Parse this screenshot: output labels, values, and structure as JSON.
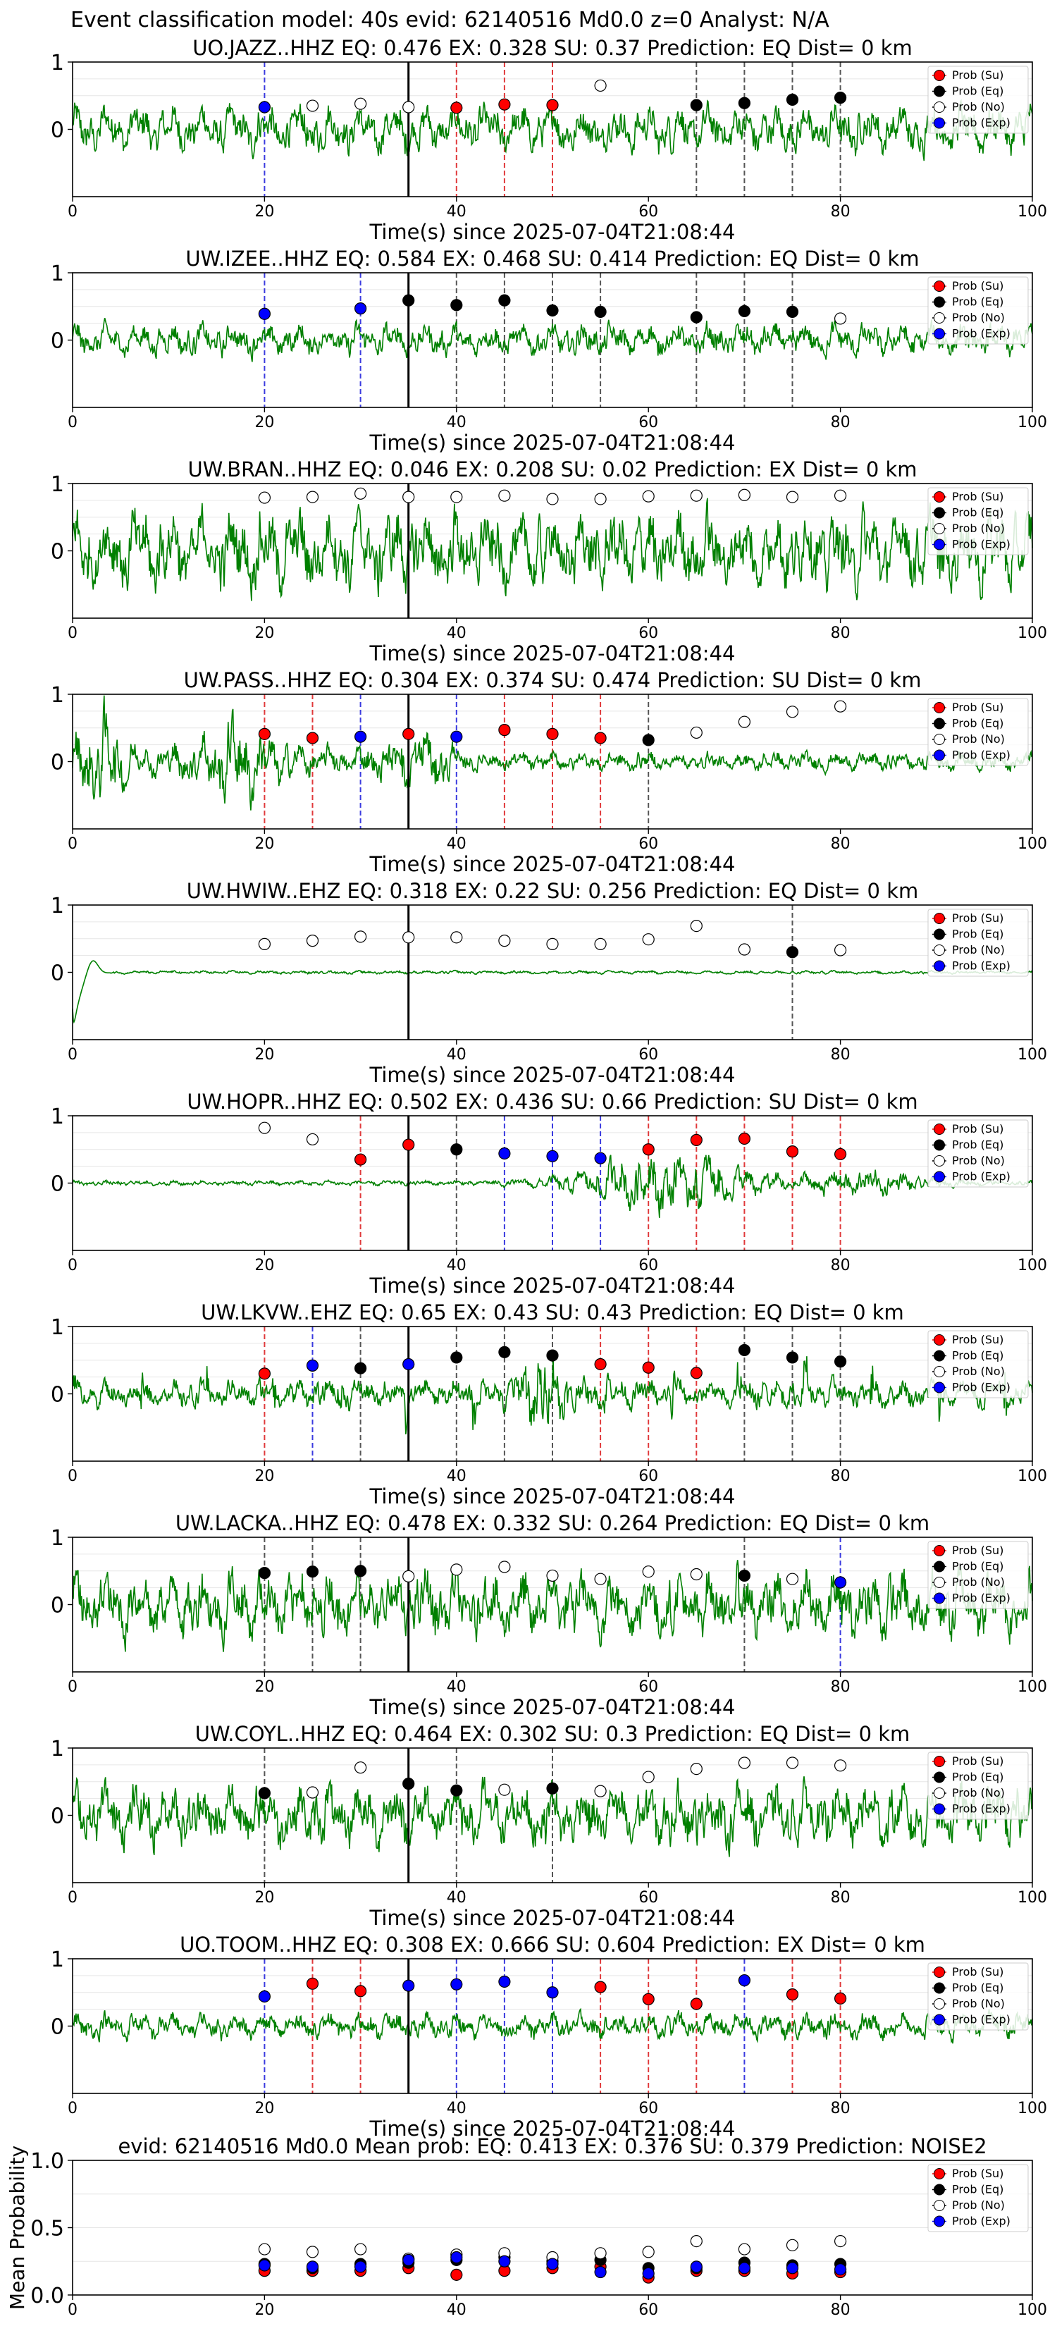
{
  "suptitle": "Event classification model: 40s evid: 62140516 Md0.0 z=0 Analyst: N/A",
  "legend_labels": [
    "Prob (Su)",
    "Prob (Eq)",
    "Prob (No)",
    "Prob (Exp)"
  ],
  "colors": {
    "waveform": "#008000",
    "su": "#ff0000",
    "eq": "#000000",
    "no": "#ffffff",
    "exp": "#0000ff",
    "su_line": "#e0393b",
    "eq_line": "#555555",
    "exp_line": "#3a3adf",
    "pick_line": "#000000"
  },
  "chart_data": [
    {
      "type": "line+scatter",
      "station": "UO.JAZZ..HHZ",
      "title": "UO.JAZZ..HHZ   EQ: 0.476  EX: 0.328  SU: 0.37   Prediction: EQ    Dist= 0 km",
      "xlabel": "Time(s) since 2025-07-04T21:08:44",
      "xlim": [
        0,
        100
      ],
      "ylim": [
        -1,
        1
      ],
      "xticks": [
        0,
        20,
        40,
        60,
        80,
        100
      ],
      "yticks": [
        0,
        1
      ],
      "pick_time": 35,
      "waveform": {
        "style": "continuous",
        "amplitude": 0.45
      },
      "points": [
        {
          "x": 20,
          "y": 0.33,
          "cls": "exp"
        },
        {
          "x": 25,
          "y": 0.35,
          "cls": "no"
        },
        {
          "x": 30,
          "y": 0.38,
          "cls": "no"
        },
        {
          "x": 35,
          "y": 0.33,
          "cls": "no"
        },
        {
          "x": 40,
          "y": 0.32,
          "cls": "su"
        },
        {
          "x": 45,
          "y": 0.37,
          "cls": "su"
        },
        {
          "x": 50,
          "y": 0.36,
          "cls": "su"
        },
        {
          "x": 55,
          "y": 0.65,
          "cls": "no"
        },
        {
          "x": 65,
          "y": 0.36,
          "cls": "eq"
        },
        {
          "x": 70,
          "y": 0.39,
          "cls": "eq"
        },
        {
          "x": 75,
          "y": 0.44,
          "cls": "eq"
        },
        {
          "x": 80,
          "y": 0.47,
          "cls": "eq"
        }
      ]
    },
    {
      "type": "line+scatter",
      "station": "UW.IZEE..HHZ",
      "title": "UW.IZEE..HHZ   EQ: 0.584  EX: 0.468  SU: 0.414   Prediction: EQ    Dist= 0 km",
      "xlabel": "Time(s) since 2025-07-04T21:08:44",
      "xlim": [
        0,
        100
      ],
      "ylim": [
        -1,
        1
      ],
      "xticks": [
        0,
        20,
        40,
        60,
        80,
        100
      ],
      "yticks": [
        0,
        1
      ],
      "pick_time": 35,
      "waveform": {
        "style": "continuous",
        "amplitude": 0.3
      },
      "points": [
        {
          "x": 20,
          "y": 0.39,
          "cls": "exp"
        },
        {
          "x": 30,
          "y": 0.47,
          "cls": "exp"
        },
        {
          "x": 35,
          "y": 0.59,
          "cls": "eq"
        },
        {
          "x": 40,
          "y": 0.52,
          "cls": "eq"
        },
        {
          "x": 45,
          "y": 0.59,
          "cls": "eq"
        },
        {
          "x": 50,
          "y": 0.44,
          "cls": "eq"
        },
        {
          "x": 55,
          "y": 0.42,
          "cls": "eq"
        },
        {
          "x": 65,
          "y": 0.34,
          "cls": "eq"
        },
        {
          "x": 70,
          "y": 0.43,
          "cls": "eq"
        },
        {
          "x": 75,
          "y": 0.42,
          "cls": "eq"
        },
        {
          "x": 80,
          "y": 0.32,
          "cls": "no"
        }
      ]
    },
    {
      "type": "line+scatter",
      "station": "UW.BRAN..HHZ",
      "title": "UW.BRAN..HHZ   EQ: 0.046  EX: 0.208  SU: 0.02   Prediction: EX    Dist= 0 km",
      "xlabel": "Time(s) since 2025-07-04T21:08:44",
      "xlim": [
        0,
        100
      ],
      "ylim": [
        -1,
        1
      ],
      "xticks": [
        0,
        20,
        40,
        60,
        80,
        100
      ],
      "yticks": [
        0,
        1
      ],
      "pick_time": 35,
      "waveform": {
        "style": "continuous",
        "amplitude": 0.75
      },
      "points": [
        {
          "x": 20,
          "y": 0.79,
          "cls": "no"
        },
        {
          "x": 25,
          "y": 0.8,
          "cls": "no"
        },
        {
          "x": 30,
          "y": 0.85,
          "cls": "no"
        },
        {
          "x": 35,
          "y": 0.8,
          "cls": "no"
        },
        {
          "x": 40,
          "y": 0.8,
          "cls": "no"
        },
        {
          "x": 45,
          "y": 0.82,
          "cls": "no"
        },
        {
          "x": 50,
          "y": 0.77,
          "cls": "no"
        },
        {
          "x": 55,
          "y": 0.77,
          "cls": "no"
        },
        {
          "x": 60,
          "y": 0.81,
          "cls": "no"
        },
        {
          "x": 65,
          "y": 0.82,
          "cls": "no"
        },
        {
          "x": 70,
          "y": 0.83,
          "cls": "no"
        },
        {
          "x": 75,
          "y": 0.8,
          "cls": "no"
        },
        {
          "x": 80,
          "y": 0.82,
          "cls": "no"
        }
      ]
    },
    {
      "type": "line+scatter",
      "station": "UW.PASS..HHZ",
      "title": "UW.PASS..HHZ   EQ: 0.304  EX: 0.374  SU: 0.474   Prediction: SU    Dist= 0 km",
      "xlabel": "Time(s) since 2025-07-04T21:08:44",
      "xlim": [
        0,
        100
      ],
      "ylim": [
        -1,
        1
      ],
      "xticks": [
        0,
        20,
        40,
        60,
        80,
        100
      ],
      "yticks": [
        0,
        1
      ],
      "pick_time": 35,
      "waveform": {
        "style": "bursty",
        "amplitude": 0.4
      },
      "points": [
        {
          "x": 20,
          "y": 0.41,
          "cls": "su"
        },
        {
          "x": 25,
          "y": 0.35,
          "cls": "su"
        },
        {
          "x": 30,
          "y": 0.37,
          "cls": "exp"
        },
        {
          "x": 35,
          "y": 0.41,
          "cls": "su"
        },
        {
          "x": 40,
          "y": 0.37,
          "cls": "exp"
        },
        {
          "x": 45,
          "y": 0.47,
          "cls": "su"
        },
        {
          "x": 50,
          "y": 0.41,
          "cls": "su"
        },
        {
          "x": 55,
          "y": 0.35,
          "cls": "su"
        },
        {
          "x": 60,
          "y": 0.32,
          "cls": "eq"
        },
        {
          "x": 65,
          "y": 0.43,
          "cls": "no"
        },
        {
          "x": 70,
          "y": 0.59,
          "cls": "no"
        },
        {
          "x": 75,
          "y": 0.74,
          "cls": "no"
        },
        {
          "x": 80,
          "y": 0.82,
          "cls": "no"
        }
      ]
    },
    {
      "type": "line+scatter",
      "station": "UW.HWIW..EHZ",
      "title": "UW.HWIW..EHZ   EQ: 0.318  EX: 0.22  SU: 0.256   Prediction: EQ    Dist= 0 km",
      "xlabel": "Time(s) since 2025-07-04T21:08:44",
      "xlim": [
        0,
        100
      ],
      "ylim": [
        -1,
        1
      ],
      "xticks": [
        0,
        20,
        40,
        60,
        80,
        100
      ],
      "yticks": [
        0,
        1
      ],
      "pick_time": 35,
      "waveform": {
        "style": "flat",
        "amplitude": 0.03
      },
      "points": [
        {
          "x": 20,
          "y": 0.42,
          "cls": "no"
        },
        {
          "x": 25,
          "y": 0.47,
          "cls": "no"
        },
        {
          "x": 30,
          "y": 0.53,
          "cls": "no"
        },
        {
          "x": 35,
          "y": 0.52,
          "cls": "no"
        },
        {
          "x": 40,
          "y": 0.52,
          "cls": "no"
        },
        {
          "x": 45,
          "y": 0.47,
          "cls": "no"
        },
        {
          "x": 50,
          "y": 0.42,
          "cls": "no"
        },
        {
          "x": 55,
          "y": 0.42,
          "cls": "no"
        },
        {
          "x": 60,
          "y": 0.49,
          "cls": "no"
        },
        {
          "x": 65,
          "y": 0.69,
          "cls": "no"
        },
        {
          "x": 70,
          "y": 0.34,
          "cls": "no"
        },
        {
          "x": 75,
          "y": 0.3,
          "cls": "eq"
        },
        {
          "x": 80,
          "y": 0.33,
          "cls": "no"
        }
      ]
    },
    {
      "type": "line+scatter",
      "station": "UW.HOPR..HHZ",
      "title": "UW.HOPR..HHZ   EQ: 0.502  EX: 0.436  SU: 0.66   Prediction: SU    Dist= 0 km",
      "xlabel": "Time(s) since 2025-07-04T21:08:44",
      "xlim": [
        0,
        100
      ],
      "ylim": [
        -1,
        1
      ],
      "xticks": [
        0,
        20,
        40,
        60,
        80,
        100
      ],
      "yticks": [
        0,
        1
      ],
      "pick_time": 35,
      "waveform": {
        "style": "late-burst",
        "amplitude": 0.4
      },
      "points": [
        {
          "x": 20,
          "y": 0.82,
          "cls": "no"
        },
        {
          "x": 25,
          "y": 0.65,
          "cls": "no"
        },
        {
          "x": 30,
          "y": 0.35,
          "cls": "su"
        },
        {
          "x": 35,
          "y": 0.57,
          "cls": "su"
        },
        {
          "x": 40,
          "y": 0.5,
          "cls": "eq"
        },
        {
          "x": 45,
          "y": 0.44,
          "cls": "exp"
        },
        {
          "x": 50,
          "y": 0.4,
          "cls": "exp"
        },
        {
          "x": 55,
          "y": 0.37,
          "cls": "exp"
        },
        {
          "x": 60,
          "y": 0.5,
          "cls": "su"
        },
        {
          "x": 65,
          "y": 0.64,
          "cls": "su"
        },
        {
          "x": 70,
          "y": 0.66,
          "cls": "su"
        },
        {
          "x": 75,
          "y": 0.47,
          "cls": "su"
        },
        {
          "x": 80,
          "y": 0.43,
          "cls": "su"
        }
      ]
    },
    {
      "type": "line+scatter",
      "station": "UW.LKVW..EHZ",
      "title": "UW.LKVW..EHZ   EQ: 0.65  EX: 0.43  SU: 0.43   Prediction: EQ    Dist= 0 km",
      "xlabel": "Time(s) since 2025-07-04T21:08:44",
      "xlim": [
        0,
        100
      ],
      "ylim": [
        -1,
        1
      ],
      "xticks": [
        0,
        20,
        40,
        60,
        80,
        100
      ],
      "yticks": [
        0,
        1
      ],
      "pick_time": 35,
      "waveform": {
        "style": "spiky",
        "amplitude": 0.45
      },
      "points": [
        {
          "x": 20,
          "y": 0.3,
          "cls": "su"
        },
        {
          "x": 25,
          "y": 0.42,
          "cls": "exp"
        },
        {
          "x": 30,
          "y": 0.38,
          "cls": "eq"
        },
        {
          "x": 35,
          "y": 0.44,
          "cls": "exp"
        },
        {
          "x": 40,
          "y": 0.54,
          "cls": "eq"
        },
        {
          "x": 45,
          "y": 0.62,
          "cls": "eq"
        },
        {
          "x": 50,
          "y": 0.57,
          "cls": "eq"
        },
        {
          "x": 55,
          "y": 0.44,
          "cls": "su"
        },
        {
          "x": 60,
          "y": 0.39,
          "cls": "su"
        },
        {
          "x": 65,
          "y": 0.31,
          "cls": "su"
        },
        {
          "x": 70,
          "y": 0.65,
          "cls": "eq"
        },
        {
          "x": 75,
          "y": 0.54,
          "cls": "eq"
        },
        {
          "x": 80,
          "y": 0.48,
          "cls": "eq"
        }
      ]
    },
    {
      "type": "line+scatter",
      "station": "UW.LACKA..HHZ",
      "title": "UW.LACKA..HHZ   EQ: 0.478  EX: 0.332  SU: 0.264   Prediction: EQ    Dist= 0 km",
      "xlabel": "Time(s) since 2025-07-04T21:08:44",
      "xlim": [
        0,
        100
      ],
      "ylim": [
        -1,
        1
      ],
      "xticks": [
        0,
        20,
        40,
        60,
        80,
        100
      ],
      "yticks": [
        0,
        1
      ],
      "pick_time": 35,
      "waveform": {
        "style": "continuous",
        "amplitude": 0.65
      },
      "points": [
        {
          "x": 20,
          "y": 0.47,
          "cls": "eq"
        },
        {
          "x": 25,
          "y": 0.49,
          "cls": "eq"
        },
        {
          "x": 30,
          "y": 0.5,
          "cls": "eq"
        },
        {
          "x": 35,
          "y": 0.42,
          "cls": "no"
        },
        {
          "x": 40,
          "y": 0.52,
          "cls": "no"
        },
        {
          "x": 45,
          "y": 0.56,
          "cls": "no"
        },
        {
          "x": 50,
          "y": 0.43,
          "cls": "no"
        },
        {
          "x": 55,
          "y": 0.38,
          "cls": "no"
        },
        {
          "x": 60,
          "y": 0.49,
          "cls": "no"
        },
        {
          "x": 65,
          "y": 0.45,
          "cls": "no"
        },
        {
          "x": 70,
          "y": 0.43,
          "cls": "eq"
        },
        {
          "x": 75,
          "y": 0.38,
          "cls": "no"
        },
        {
          "x": 80,
          "y": 0.33,
          "cls": "exp"
        }
      ]
    },
    {
      "type": "line+scatter",
      "station": "UW.COYL..HHZ",
      "title": "UW.COYL..HHZ   EQ: 0.464  EX: 0.302  SU: 0.3   Prediction: EQ    Dist= 0 km",
      "xlabel": "Time(s) since 2025-07-04T21:08:44",
      "xlim": [
        0,
        100
      ],
      "ylim": [
        -1,
        1
      ],
      "xticks": [
        0,
        20,
        40,
        60,
        80,
        100
      ],
      "yticks": [
        0,
        1
      ],
      "pick_time": 35,
      "waveform": {
        "style": "continuous",
        "amplitude": 0.6
      },
      "points": [
        {
          "x": 20,
          "y": 0.33,
          "cls": "eq"
        },
        {
          "x": 25,
          "y": 0.34,
          "cls": "no"
        },
        {
          "x": 30,
          "y": 0.71,
          "cls": "no"
        },
        {
          "x": 35,
          "y": 0.47,
          "cls": "eq"
        },
        {
          "x": 40,
          "y": 0.37,
          "cls": "eq"
        },
        {
          "x": 45,
          "y": 0.38,
          "cls": "no"
        },
        {
          "x": 50,
          "y": 0.4,
          "cls": "eq"
        },
        {
          "x": 55,
          "y": 0.36,
          "cls": "no"
        },
        {
          "x": 60,
          "y": 0.57,
          "cls": "no"
        },
        {
          "x": 65,
          "y": 0.69,
          "cls": "no"
        },
        {
          "x": 70,
          "y": 0.78,
          "cls": "no"
        },
        {
          "x": 75,
          "y": 0.78,
          "cls": "no"
        },
        {
          "x": 80,
          "y": 0.74,
          "cls": "no"
        }
      ]
    },
    {
      "type": "line+scatter",
      "station": "UO.TOOM..HHZ",
      "title": "UO.TOOM..HHZ   EQ: 0.308  EX: 0.666  SU: 0.604   Prediction: EX    Dist= 0 km",
      "xlabel": "Time(s) since 2025-07-04T21:08:44",
      "xlim": [
        0,
        100
      ],
      "ylim": [
        -1,
        1
      ],
      "xticks": [
        0,
        20,
        40,
        60,
        80,
        100
      ],
      "yticks": [
        0,
        1
      ],
      "pick_time": 35,
      "waveform": {
        "style": "continuous",
        "amplitude": 0.25
      },
      "points": [
        {
          "x": 20,
          "y": 0.44,
          "cls": "exp"
        },
        {
          "x": 25,
          "y": 0.63,
          "cls": "su"
        },
        {
          "x": 30,
          "y": 0.52,
          "cls": "su"
        },
        {
          "x": 35,
          "y": 0.6,
          "cls": "exp"
        },
        {
          "x": 40,
          "y": 0.62,
          "cls": "exp"
        },
        {
          "x": 45,
          "y": 0.66,
          "cls": "exp"
        },
        {
          "x": 50,
          "y": 0.5,
          "cls": "exp"
        },
        {
          "x": 55,
          "y": 0.58,
          "cls": "su"
        },
        {
          "x": 60,
          "y": 0.4,
          "cls": "su"
        },
        {
          "x": 65,
          "y": 0.33,
          "cls": "su"
        },
        {
          "x": 70,
          "y": 0.68,
          "cls": "exp"
        },
        {
          "x": 75,
          "y": 0.47,
          "cls": "su"
        },
        {
          "x": 80,
          "y": 0.41,
          "cls": "su"
        }
      ]
    },
    {
      "type": "scatter",
      "station": "mean",
      "title": "evid: 62140516  Md0.0   Mean prob:   EQ: 0.413  EX: 0.376  SU: 0.379   Prediction: NOISE2",
      "ylabel": "Mean Probability",
      "xlim": [
        0,
        100
      ],
      "ylim": [
        0,
        1
      ],
      "xticks": [
        0,
        20,
        40,
        60,
        80,
        100
      ],
      "yticks": [
        0,
        0.5,
        1
      ],
      "ytick_labels": [
        "0.0",
        "0.5",
        "1.0"
      ],
      "series": [
        {
          "name": "Prob (Su)",
          "cls": "su",
          "x": [
            20,
            25,
            30,
            35,
            40,
            45,
            50,
            55,
            60,
            65,
            70,
            75,
            80
          ],
          "values": [
            0.18,
            0.18,
            0.18,
            0.2,
            0.15,
            0.18,
            0.2,
            0.21,
            0.13,
            0.18,
            0.18,
            0.16,
            0.17
          ]
        },
        {
          "name": "Prob (Eq)",
          "cls": "eq",
          "x": [
            20,
            25,
            30,
            35,
            40,
            45,
            50,
            55,
            60,
            65,
            70,
            75,
            80
          ],
          "values": [
            0.23,
            0.2,
            0.23,
            0.24,
            0.26,
            0.28,
            0.25,
            0.26,
            0.2,
            0.2,
            0.24,
            0.22,
            0.23
          ]
        },
        {
          "name": "Prob (No)",
          "cls": "no",
          "x": [
            20,
            25,
            30,
            35,
            40,
            45,
            50,
            55,
            60,
            65,
            70,
            75,
            80
          ],
          "values": [
            0.34,
            0.32,
            0.34,
            0.27,
            0.3,
            0.31,
            0.28,
            0.31,
            0.32,
            0.4,
            0.34,
            0.37,
            0.4
          ]
        },
        {
          "name": "Prob (Exp)",
          "cls": "exp",
          "x": [
            20,
            25,
            30,
            35,
            40,
            45,
            50,
            55,
            60,
            65,
            70,
            75,
            80
          ],
          "values": [
            0.22,
            0.21,
            0.21,
            0.26,
            0.28,
            0.25,
            0.23,
            0.17,
            0.16,
            0.21,
            0.2,
            0.2,
            0.19
          ]
        }
      ]
    }
  ]
}
